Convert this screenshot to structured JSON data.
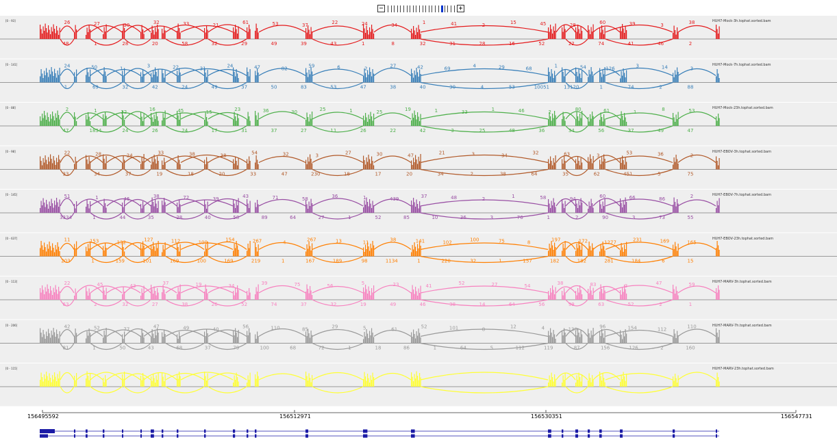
{
  "zoom": {
    "minus_label": "−",
    "plus_label": "+",
    "ticks": 22,
    "active_tick": 17
  },
  "tracks": [
    {
      "name": "HUH7-Mock-3h.tophat.sorted.bam",
      "range": "[0 - 93]",
      "color": "#e41a1c",
      "top_labels": [
        "26",
        "27",
        "30",
        "32",
        "33",
        "21",
        "61",
        "53",
        "37",
        "22",
        "24",
        "34",
        "1",
        "41",
        "2",
        "15",
        "45",
        "28",
        "60",
        "39",
        "3",
        "38"
      ],
      "bottom_labels": [
        "48",
        "1",
        "28",
        "20",
        "58",
        "32",
        "29",
        "49",
        "39",
        "43",
        "1",
        "8",
        "32",
        "31",
        "28",
        "16",
        "52",
        "22",
        "74",
        "41",
        "46",
        "2"
      ]
    },
    {
      "name": "HUH7-Mock-7h.tophat.sorted.bam",
      "range": "[0 - 141]",
      "color": "#377eb8",
      "top_labels": [
        "24",
        "50",
        "1",
        "3",
        "22",
        "31",
        "24",
        "47",
        "82",
        "59",
        "6",
        "2",
        "27",
        "42",
        "69",
        "4",
        "29",
        "68",
        "1",
        "54",
        "126",
        "3",
        "14",
        "3"
      ],
      "bottom_labels": [
        "1",
        "69",
        "32",
        "42",
        "24",
        "49",
        "37",
        "50",
        "83",
        "53",
        "47",
        "38",
        "40",
        "30",
        "4",
        "53",
        "10051",
        "13120",
        "1",
        "74",
        "2",
        "88"
      ]
    },
    {
      "name": "HUH7-Mock-23h.tophat.sorted.bam",
      "range": "[0 - 88]",
      "color": "#4daf4a",
      "top_labels": [
        "2",
        "1",
        "22",
        "16",
        "45",
        "15",
        "23",
        "36",
        "30",
        "25",
        "1",
        "25",
        "19",
        "1",
        "33",
        "1",
        "46",
        "2",
        "80",
        "61",
        "1",
        "8",
        "53"
      ],
      "bottom_labels": [
        "47",
        "1834",
        "24",
        "26",
        "24",
        "17",
        "31",
        "37",
        "27",
        "11",
        "26",
        "22",
        "42",
        "3",
        "25",
        "48",
        "36",
        "34",
        "56",
        "37",
        "49",
        "47"
      ]
    },
    {
      "name": "HUH7-EBOV-3h.tophat.sorted.bam",
      "range": "[0 - 98]",
      "color": "#b15928",
      "top_labels": [
        "22",
        "28",
        "24",
        "33",
        "38",
        "38",
        "54",
        "32",
        "3",
        "27",
        "30",
        "47",
        "21",
        "3",
        "34",
        "32",
        "63",
        "3",
        "53",
        "36",
        "2"
      ],
      "bottom_labels": [
        "33",
        "34",
        "37",
        "19",
        "18",
        "20",
        "33",
        "47",
        "230",
        "18",
        "17",
        "20",
        "34",
        "2",
        "38",
        "64",
        "35",
        "62",
        "451",
        "5",
        "75"
      ]
    },
    {
      "name": "HUH7-EBOV-7h.tophat.sorted.bam",
      "range": "[0 - 145]",
      "color": "#984ea3",
      "top_labels": [
        "51",
        "1",
        "46",
        "38",
        "72",
        "39",
        "43",
        "71",
        "58",
        "36",
        "1",
        "439",
        "37",
        "48",
        "2",
        "1",
        "58",
        "94",
        "60",
        "66",
        "86",
        "2"
      ],
      "bottom_labels": [
        "3334",
        "1",
        "44",
        "35",
        "28",
        "40",
        "58",
        "89",
        "64",
        "27",
        "1",
        "52",
        "85",
        "10",
        "36",
        "3",
        "76",
        "1",
        "2",
        "90",
        "3",
        "73",
        "55"
      ]
    },
    {
      "name": "HUH7-EBOV-23h.tophat.sorted.bam",
      "range": "[0 - 637]",
      "color": "#ff7f00",
      "top_labels": [
        "11",
        "153",
        "132",
        "127",
        "112",
        "100",
        "154",
        "267",
        "4",
        "267",
        "13",
        "11",
        "38",
        "141",
        "102",
        "100",
        "75",
        "8",
        "197",
        "172",
        "1277",
        "231",
        "169",
        "165"
      ],
      "bottom_labels": [
        "203",
        "1",
        "159",
        "101",
        "169",
        "100",
        "169",
        "219",
        "1",
        "167",
        "189",
        "98",
        "1134",
        "1",
        "220",
        "32",
        "1",
        "157",
        "182",
        "182",
        "281",
        "184",
        "6",
        "15"
      ]
    },
    {
      "name": "HUH7-MARV-3h.tophat.sorted.bam",
      "range": "[0 - 113]",
      "color": "#f781bf",
      "top_labels": [
        "22",
        "45",
        "43",
        "37",
        "19",
        "34",
        "39",
        "75",
        "56",
        "5",
        "23",
        "41",
        "52",
        "27",
        "54",
        "38",
        "83",
        "3",
        "47",
        "59"
      ],
      "bottom_labels": [
        "63",
        "2",
        "32",
        "27",
        "38",
        "26",
        "52",
        "74",
        "37",
        "32",
        "19",
        "49",
        "46",
        "38",
        "14",
        "64",
        "56",
        "99",
        "63",
        "52",
        "2",
        "1"
      ]
    },
    {
      "name": "HUH7-MARV-7h.tophat.sorted.bam",
      "range": "[0 - 206]",
      "color": "#999999",
      "top_labels": [
        "42",
        "52",
        "77",
        "47",
        "49",
        "40",
        "56",
        "110",
        "85",
        "29",
        "5",
        "61",
        "52",
        "101",
        "8",
        "12",
        "4",
        "138",
        "96",
        "154",
        "112",
        "110"
      ],
      "bottom_labels": [
        "81",
        "1",
        "50",
        "43",
        "68",
        "37",
        "79",
        "100",
        "68",
        "72",
        "1",
        "18",
        "86",
        "1",
        "64",
        "5",
        "112",
        "119",
        "87",
        "156",
        "126",
        "2",
        "160"
      ]
    },
    {
      "name": "HUH7-MARV-23h.tophat.sorted.bam",
      "range": "[0 - 115]",
      "color": "#ffff33",
      "top_labels": [],
      "bottom_labels": []
    }
  ],
  "ruler": {
    "labels": [
      "156495592",
      "156512971",
      "156530351",
      "156547731"
    ]
  }
}
